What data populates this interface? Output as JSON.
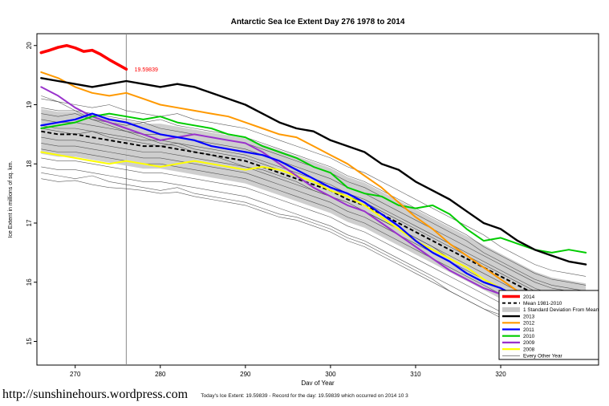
{
  "page": {
    "footer_url": "http://sunshinehours.wordpress.com",
    "footer_caption": "Today's Ice Extent: 19.59839  - Record for the day: 19.59839 which occurred on 2014 10 3"
  },
  "chart_data": {
    "type": "line",
    "title": "Antarctic Sea Ice Extent Day 276 1978 to 2014",
    "xlabel": "Day of Year",
    "ylabel": "Ice Extent in millions of sq. km.",
    "xlim": [
      265.5,
      331.5
    ],
    "ylim": [
      14.6,
      20.2
    ],
    "xticks": [
      270,
      280,
      290,
      300,
      310,
      320
    ],
    "yticks": [
      15,
      16,
      17,
      18,
      19,
      20
    ],
    "vline_x": 276,
    "annotation": {
      "text": "19.59839",
      "x": 276.5,
      "y": 19.6,
      "color": "#ff0000"
    },
    "x": [
      266,
      268,
      270,
      272,
      274,
      276,
      278,
      280,
      282,
      284,
      286,
      288,
      290,
      292,
      294,
      296,
      298,
      300,
      302,
      304,
      306,
      308,
      310,
      312,
      314,
      316,
      318,
      320,
      322,
      324,
      326,
      328,
      330
    ],
    "mean": {
      "name": "Mean 1981-2010",
      "color": "#000000",
      "values": [
        18.55,
        18.5,
        18.5,
        18.45,
        18.4,
        18.35,
        18.3,
        18.3,
        18.25,
        18.2,
        18.15,
        18.1,
        18.05,
        17.95,
        17.85,
        17.75,
        17.65,
        17.55,
        17.4,
        17.3,
        17.15,
        17.0,
        16.85,
        16.7,
        16.55,
        16.4,
        16.25,
        16.1,
        15.95,
        15.8,
        15.7,
        15.65,
        15.6
      ]
    },
    "band": {
      "name": "1 Standard Deviation From Mean",
      "color": "#c9c9c9",
      "sd": 0.38
    },
    "series": [
      {
        "name": "2008",
        "color": "#ffff00",
        "width": 2,
        "values": [
          18.2,
          18.15,
          18.1,
          18.05,
          18.0,
          18.05,
          18.0,
          17.95,
          18.0,
          18.05,
          18.0,
          17.95,
          17.9,
          17.95,
          17.9,
          17.8,
          17.7,
          17.55,
          17.45,
          17.3,
          17.1,
          16.9,
          16.7,
          16.55,
          16.4,
          16.25,
          16.05,
          15.9,
          15.7,
          15.55,
          15.5,
          15.45,
          15.4
        ]
      },
      {
        "name": "2009",
        "color": "#9932cc",
        "width": 2,
        "values": [
          19.3,
          19.15,
          18.95,
          18.8,
          18.7,
          18.6,
          18.5,
          18.4,
          18.45,
          18.5,
          18.45,
          18.4,
          18.35,
          18.2,
          18.0,
          17.8,
          17.6,
          17.45,
          17.3,
          17.2,
          17.0,
          16.8,
          16.6,
          16.4,
          16.2,
          16.05,
          15.9,
          15.8,
          15.7,
          15.6,
          15.5,
          15.45,
          15.4
        ]
      },
      {
        "name": "2010",
        "color": "#00cc00",
        "width": 2,
        "values": [
          18.6,
          18.65,
          18.7,
          18.8,
          18.85,
          18.8,
          18.75,
          18.8,
          18.7,
          18.65,
          18.6,
          18.5,
          18.45,
          18.3,
          18.2,
          18.1,
          17.95,
          17.85,
          17.6,
          17.5,
          17.45,
          17.3,
          17.25,
          17.3,
          17.15,
          16.9,
          16.7,
          16.75,
          16.65,
          16.55,
          16.5,
          16.55,
          16.5
        ]
      },
      {
        "name": "2011",
        "color": "#0000ff",
        "width": 2.2,
        "values": [
          18.65,
          18.7,
          18.75,
          18.85,
          18.75,
          18.7,
          18.6,
          18.5,
          18.45,
          18.4,
          18.3,
          18.25,
          18.2,
          18.15,
          18.05,
          17.9,
          17.75,
          17.6,
          17.5,
          17.35,
          17.15,
          16.95,
          16.7,
          16.5,
          16.35,
          16.15,
          16.0,
          15.9,
          15.75,
          15.65,
          15.55,
          15.5,
          15.45
        ]
      },
      {
        "name": "2012",
        "color": "#ff9900",
        "width": 2,
        "values": [
          19.55,
          19.45,
          19.3,
          19.2,
          19.15,
          19.2,
          19.1,
          19.0,
          18.95,
          18.9,
          18.85,
          18.8,
          18.7,
          18.6,
          18.5,
          18.45,
          18.3,
          18.15,
          18.0,
          17.8,
          17.6,
          17.35,
          17.1,
          16.9,
          16.65,
          16.45,
          16.25,
          16.05,
          15.85,
          15.7,
          15.6,
          15.5,
          15.45
        ]
      },
      {
        "name": "2013",
        "color": "#000000",
        "width": 2.4,
        "values": [
          19.45,
          19.4,
          19.35,
          19.3,
          19.35,
          19.4,
          19.35,
          19.3,
          19.35,
          19.3,
          19.2,
          19.1,
          19.0,
          18.85,
          18.7,
          18.6,
          18.55,
          18.4,
          18.3,
          18.2,
          18.0,
          17.9,
          17.7,
          17.55,
          17.4,
          17.2,
          17.0,
          16.9,
          16.7,
          16.55,
          16.45,
          16.35,
          16.3
        ]
      },
      {
        "name": "2014",
        "color": "#ff0000",
        "width": 3.6,
        "x": [
          266,
          267,
          268,
          269,
          270,
          271,
          272,
          273,
          274,
          275,
          276
        ],
        "values": [
          19.88,
          19.92,
          19.97,
          20.0,
          19.96,
          19.9,
          19.92,
          19.85,
          19.76,
          19.68,
          19.6
        ]
      }
    ],
    "other_years": {
      "name": "Every Other Year",
      "color": "#404040",
      "width": 0.6,
      "lines": [
        [
          19.1,
          19.05,
          19.0,
          18.95,
          19.0,
          18.9,
          18.85,
          18.8,
          18.85,
          18.75,
          18.7,
          18.65,
          18.6,
          18.5,
          18.4,
          18.3,
          18.2,
          18.1,
          17.95,
          17.85,
          17.7,
          17.55,
          17.4,
          17.25,
          17.1,
          16.95,
          16.8,
          16.6,
          16.45,
          16.3,
          16.2,
          16.15,
          16.1
        ],
        [
          18.95,
          18.9,
          18.9,
          18.85,
          18.8,
          18.75,
          18.7,
          18.75,
          18.65,
          18.6,
          18.55,
          18.5,
          18.45,
          18.35,
          18.25,
          18.15,
          18.05,
          17.95,
          17.8,
          17.7,
          17.55,
          17.4,
          17.25,
          17.1,
          16.95,
          16.8,
          16.6,
          16.45,
          16.3,
          16.15,
          16.05,
          16.0,
          15.95
        ],
        [
          18.85,
          18.8,
          18.85,
          18.75,
          18.7,
          18.65,
          18.7,
          18.6,
          18.55,
          18.5,
          18.45,
          18.4,
          18.35,
          18.25,
          18.15,
          18.05,
          17.95,
          17.85,
          17.7,
          17.6,
          17.45,
          17.3,
          17.15,
          17.0,
          16.85,
          16.7,
          16.5,
          16.35,
          16.2,
          16.05,
          15.95,
          15.9,
          15.85
        ],
        [
          18.75,
          18.7,
          18.7,
          18.65,
          18.6,
          18.55,
          18.5,
          18.5,
          18.45,
          18.4,
          18.35,
          18.3,
          18.25,
          18.15,
          18.05,
          17.95,
          17.85,
          17.75,
          17.6,
          17.5,
          17.35,
          17.2,
          17.05,
          16.9,
          16.75,
          16.6,
          16.45,
          16.3,
          16.15,
          16.0,
          15.9,
          15.85,
          15.8
        ],
        [
          18.65,
          18.6,
          18.6,
          18.55,
          18.5,
          18.45,
          18.4,
          18.4,
          18.35,
          18.3,
          18.25,
          18.2,
          18.15,
          18.05,
          17.95,
          17.85,
          17.75,
          17.65,
          17.5,
          17.4,
          17.25,
          17.1,
          16.95,
          16.8,
          16.65,
          16.5,
          16.35,
          16.2,
          16.05,
          15.9,
          15.8,
          15.75,
          15.7
        ],
        [
          18.6,
          18.55,
          18.5,
          18.55,
          18.45,
          18.4,
          18.35,
          18.3,
          18.35,
          18.25,
          18.2,
          18.15,
          18.1,
          18.0,
          17.9,
          17.8,
          17.7,
          17.6,
          17.45,
          17.35,
          17.2,
          17.05,
          16.9,
          16.75,
          16.6,
          16.45,
          16.3,
          16.15,
          16.0,
          15.85,
          15.75,
          15.7,
          15.65
        ],
        [
          18.45,
          18.4,
          18.4,
          18.35,
          18.3,
          18.25,
          18.2,
          18.2,
          18.15,
          18.1,
          18.05,
          18.0,
          17.95,
          17.85,
          17.75,
          17.65,
          17.55,
          17.45,
          17.3,
          17.2,
          17.05,
          16.9,
          16.75,
          16.6,
          16.45,
          16.3,
          16.15,
          16.0,
          15.85,
          15.7,
          15.6,
          15.55,
          15.5
        ],
        [
          18.35,
          18.3,
          18.3,
          18.25,
          18.2,
          18.15,
          18.1,
          18.1,
          18.05,
          18.0,
          17.95,
          17.9,
          17.85,
          17.75,
          17.65,
          17.55,
          17.45,
          17.35,
          17.2,
          17.1,
          16.95,
          16.8,
          16.65,
          16.5,
          16.35,
          16.2,
          16.05,
          15.9,
          15.75,
          15.6,
          15.5,
          15.45,
          15.4
        ],
        [
          18.25,
          18.2,
          18.2,
          18.15,
          18.1,
          18.05,
          18.0,
          18.0,
          17.95,
          17.9,
          17.85,
          17.8,
          17.75,
          17.65,
          17.55,
          17.45,
          17.35,
          17.25,
          17.1,
          17.0,
          16.85,
          16.7,
          16.55,
          16.4,
          16.25,
          16.1,
          15.95,
          15.8,
          15.65,
          15.5,
          15.4,
          15.35,
          15.3
        ],
        [
          18.1,
          18.05,
          18.05,
          18.0,
          17.95,
          17.9,
          17.85,
          17.85,
          17.8,
          17.75,
          17.7,
          17.65,
          17.6,
          17.5,
          17.4,
          17.3,
          17.2,
          17.1,
          16.95,
          16.85,
          16.7,
          16.55,
          16.4,
          16.25,
          16.1,
          15.95,
          15.8,
          15.65,
          15.5,
          15.35,
          15.25,
          15.2,
          15.15
        ],
        [
          17.95,
          17.9,
          17.9,
          17.85,
          17.8,
          17.75,
          17.7,
          17.7,
          17.65,
          17.6,
          17.55,
          17.5,
          17.45,
          17.35,
          17.25,
          17.15,
          17.05,
          16.95,
          16.8,
          16.7,
          16.55,
          16.4,
          16.25,
          16.1,
          15.95,
          15.8,
          15.65,
          15.5,
          15.35,
          15.2,
          15.1,
          15.05,
          15.0
        ],
        [
          17.75,
          17.7,
          17.72,
          17.65,
          17.6,
          17.58,
          17.55,
          17.5,
          17.52,
          17.45,
          17.4,
          17.35,
          17.3,
          17.2,
          17.1,
          17.05,
          16.95,
          16.85,
          16.7,
          16.6,
          16.45,
          16.3,
          16.15,
          16.0,
          15.85,
          15.7,
          15.55,
          15.4,
          15.25,
          15.1,
          15.0,
          14.92,
          14.85
        ],
        [
          19.15,
          19.05,
          18.9,
          18.75,
          18.65,
          18.55,
          18.45,
          18.35,
          18.3,
          18.2,
          18.15,
          18.05,
          17.95,
          17.9,
          17.8,
          17.7,
          17.55,
          17.45,
          17.35,
          17.2,
          17.05,
          16.9,
          16.75,
          16.6,
          16.4,
          16.25,
          16.05,
          15.9,
          15.7,
          15.55,
          15.45,
          15.4,
          15.35
        ],
        [
          17.85,
          17.8,
          17.75,
          17.8,
          17.7,
          17.65,
          17.6,
          17.55,
          17.6,
          17.5,
          17.45,
          17.4,
          17.35,
          17.25,
          17.15,
          17.1,
          17.0,
          16.9,
          16.75,
          16.65,
          16.5,
          16.35,
          16.2,
          16.05,
          15.85,
          15.7,
          15.55,
          15.45,
          15.3,
          15.15,
          15.05,
          14.98,
          14.9
        ]
      ]
    },
    "legend": [
      {
        "label": "2014",
        "color": "#ff0000",
        "width": 3.6
      },
      {
        "label": "Mean 1981-2010",
        "color": "#000000",
        "width": 1.8,
        "dash": "4,3"
      },
      {
        "label": "1 Standard Deviation From Mean",
        "color": "#c9c9c9",
        "width": 6
      },
      {
        "label": "2013",
        "color": "#000000",
        "width": 2.4
      },
      {
        "label": "2012",
        "color": "#ff9900",
        "width": 2.2
      },
      {
        "label": "2011",
        "color": "#0000ff",
        "width": 2.2
      },
      {
        "label": "2010",
        "color": "#00cc00",
        "width": 2.2
      },
      {
        "label": "2009",
        "color": "#9932cc",
        "width": 2.2
      },
      {
        "label": "2008",
        "color": "#ffff00",
        "width": 2.2
      },
      {
        "label": "Every Other Year",
        "color": "#404040",
        "width": 0.7
      }
    ]
  }
}
